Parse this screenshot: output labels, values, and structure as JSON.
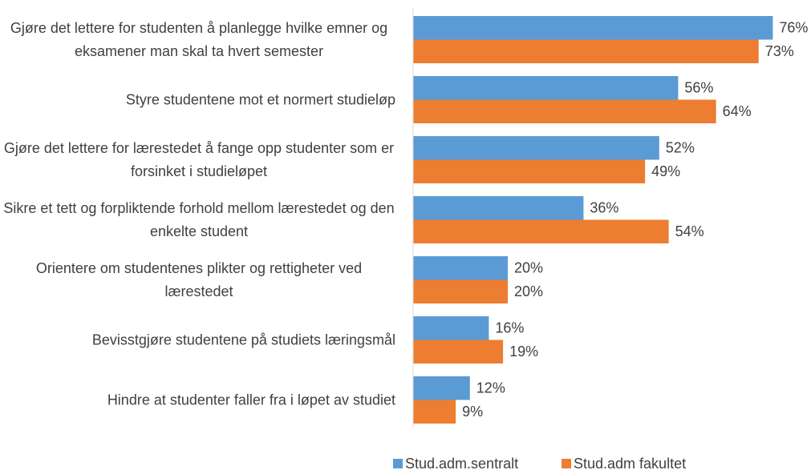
{
  "chart_data": {
    "type": "bar",
    "orientation": "horizontal",
    "categories": [
      "Gjøre det lettere for studenten å planlegge hvilke emner og eksamener man skal ta hvert semester",
      "Styre studentene mot et normert studieløp",
      "Gjøre det lettere for lærestedet å fange opp studenter som er forsinket i studieløpet",
      "Sikre et tett og forpliktende forhold mellom lærestedet og den enkelte student",
      "Orientere om studentenes plikter og rettigheter ved lærestedet",
      "Bevisstgjøre studentene på studiets læringsmål",
      "Hindre at studenter faller fra i løpet av studiet"
    ],
    "series": [
      {
        "name": "Stud.adm.sentralt",
        "color": "#5b9bd5",
        "values": [
          76,
          56,
          52,
          36,
          20,
          16,
          12
        ],
        "value_labels": [
          "76%",
          "56%",
          "52%",
          "36%",
          "20%",
          "16%",
          "12%"
        ]
      },
      {
        "name": "Stud.adm fakultet",
        "color": "#ed7d31",
        "values": [
          73,
          64,
          49,
          54,
          20,
          19,
          9
        ],
        "value_labels": [
          "73%",
          "64%",
          "49%",
          "54%",
          "20%",
          "19%",
          "9%"
        ]
      }
    ],
    "xlim": [
      0,
      80
    ],
    "legend": "bottom"
  }
}
